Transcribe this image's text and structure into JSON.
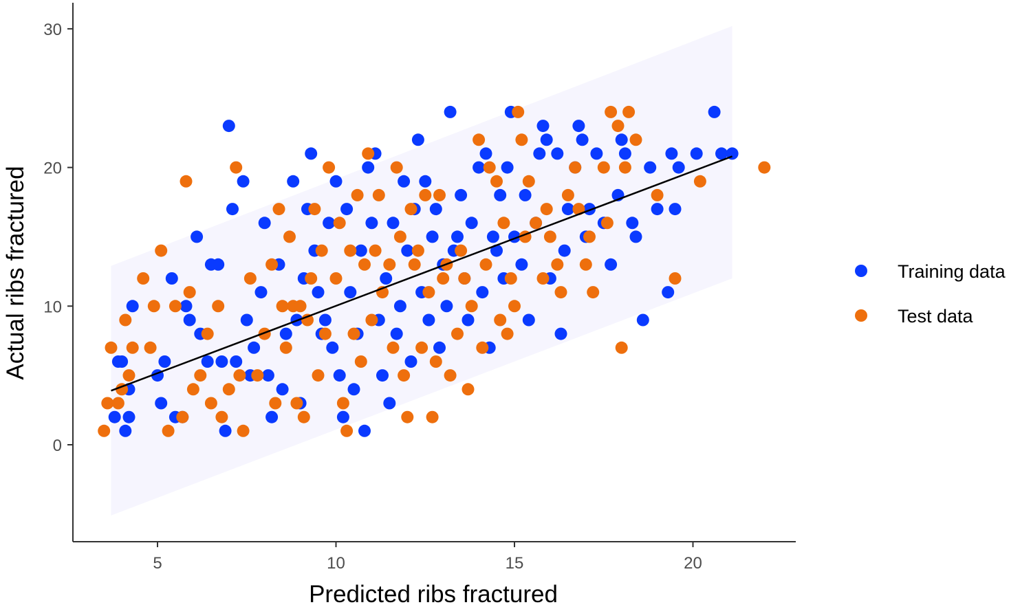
{
  "chart_data": {
    "type": "scatter",
    "title": "",
    "xlabel": "Predicted ribs fractured",
    "ylabel": "Actual ribs fractured",
    "xlim": [
      2.5,
      23.5
    ],
    "ylim": [
      -7,
      31
    ],
    "x_ticks": [
      "5",
      "10",
      "15",
      "20"
    ],
    "y_ticks": [
      "0",
      "10",
      "20",
      "30"
    ],
    "grid": false,
    "legend": {
      "position": "right"
    },
    "fit_line": {
      "x": [
        3.7,
        21.1
      ],
      "y": [
        3.9,
        20.8
      ],
      "color": "#000000"
    },
    "prediction_band": {
      "x": [
        3.7,
        21.1
      ],
      "lower": [
        -5.1,
        12.0
      ],
      "upper": [
        12.9,
        30.2
      ],
      "color": "#f6f5fe"
    },
    "series": [
      {
        "name": "Training data",
        "color": "#0a3aff",
        "points": [
          [
            3.8,
            2
          ],
          [
            4.0,
            6
          ],
          [
            3.9,
            6
          ],
          [
            4.1,
            1
          ],
          [
            4.2,
            2
          ],
          [
            4.3,
            10
          ],
          [
            4.2,
            4
          ],
          [
            5.1,
            3
          ],
          [
            5.0,
            5
          ],
          [
            5.2,
            6
          ],
          [
            5.4,
            12
          ],
          [
            5.5,
            2
          ],
          [
            5.7,
            2
          ],
          [
            5.8,
            10
          ],
          [
            5.9,
            9
          ],
          [
            6.1,
            15
          ],
          [
            6.2,
            8
          ],
          [
            6.4,
            6
          ],
          [
            6.5,
            13
          ],
          [
            6.7,
            13
          ],
          [
            6.8,
            6
          ],
          [
            6.9,
            1
          ],
          [
            7.0,
            23
          ],
          [
            7.1,
            17
          ],
          [
            7.2,
            6
          ],
          [
            7.4,
            19
          ],
          [
            7.5,
            9
          ],
          [
            7.6,
            5
          ],
          [
            7.7,
            7
          ],
          [
            7.9,
            11
          ],
          [
            8.0,
            16
          ],
          [
            8.1,
            5
          ],
          [
            8.2,
            2
          ],
          [
            8.4,
            13
          ],
          [
            8.5,
            4
          ],
          [
            8.6,
            8
          ],
          [
            8.8,
            19
          ],
          [
            8.9,
            9
          ],
          [
            9.0,
            3
          ],
          [
            9.1,
            12
          ],
          [
            9.2,
            17
          ],
          [
            9.3,
            21
          ],
          [
            9.4,
            14
          ],
          [
            9.5,
            11
          ],
          [
            9.6,
            8
          ],
          [
            9.7,
            9
          ],
          [
            9.8,
            16
          ],
          [
            9.9,
            7
          ],
          [
            10.0,
            19
          ],
          [
            10.1,
            5
          ],
          [
            10.2,
            2
          ],
          [
            10.3,
            17
          ],
          [
            10.4,
            11
          ],
          [
            10.5,
            4
          ],
          [
            10.6,
            8
          ],
          [
            10.7,
            14
          ],
          [
            10.8,
            1
          ],
          [
            10.9,
            20
          ],
          [
            11.0,
            16
          ],
          [
            11.1,
            21
          ],
          [
            11.2,
            9
          ],
          [
            11.3,
            5
          ],
          [
            11.4,
            12
          ],
          [
            11.5,
            3
          ],
          [
            11.6,
            16
          ],
          [
            11.7,
            8
          ],
          [
            11.8,
            10
          ],
          [
            11.9,
            19
          ],
          [
            12.0,
            14
          ],
          [
            12.1,
            6
          ],
          [
            12.2,
            17
          ],
          [
            12.3,
            22
          ],
          [
            12.4,
            11
          ],
          [
            12.5,
            19
          ],
          [
            12.6,
            9
          ],
          [
            12.7,
            15
          ],
          [
            12.8,
            17
          ],
          [
            12.9,
            7
          ],
          [
            13.0,
            13
          ],
          [
            13.1,
            10
          ],
          [
            13.2,
            24
          ],
          [
            13.3,
            14
          ],
          [
            13.4,
            15
          ],
          [
            13.5,
            18
          ],
          [
            13.6,
            12
          ],
          [
            13.7,
            9
          ],
          [
            13.8,
            16
          ],
          [
            14.0,
            20
          ],
          [
            14.1,
            11
          ],
          [
            14.2,
            21
          ],
          [
            14.3,
            7
          ],
          [
            14.4,
            15
          ],
          [
            14.5,
            14
          ],
          [
            14.6,
            18
          ],
          [
            14.7,
            12
          ],
          [
            14.8,
            20
          ],
          [
            14.9,
            24
          ],
          [
            15.0,
            15
          ],
          [
            15.2,
            13
          ],
          [
            15.3,
            18
          ],
          [
            15.4,
            9
          ],
          [
            15.6,
            16
          ],
          [
            15.7,
            21
          ],
          [
            15.8,
            23
          ],
          [
            15.9,
            22
          ],
          [
            16.0,
            12
          ],
          [
            16.2,
            21
          ],
          [
            16.3,
            8
          ],
          [
            16.4,
            14
          ],
          [
            16.5,
            17
          ],
          [
            16.7,
            20
          ],
          [
            16.8,
            23
          ],
          [
            16.9,
            22
          ],
          [
            17.0,
            15
          ],
          [
            17.1,
            17
          ],
          [
            17.3,
            21
          ],
          [
            17.5,
            16
          ],
          [
            17.7,
            13
          ],
          [
            17.9,
            18
          ],
          [
            18.0,
            22
          ],
          [
            18.1,
            21
          ],
          [
            18.3,
            16
          ],
          [
            18.4,
            15
          ],
          [
            18.6,
            9
          ],
          [
            18.8,
            20
          ],
          [
            19.0,
            17
          ],
          [
            19.3,
            11
          ],
          [
            19.4,
            21
          ],
          [
            19.5,
            17
          ],
          [
            19.6,
            20
          ],
          [
            20.1,
            21
          ],
          [
            20.6,
            24
          ],
          [
            20.8,
            21
          ],
          [
            21.1,
            21
          ]
        ]
      },
      {
        "name": "Test data",
        "color": "#ee6f0d",
        "points": [
          [
            3.5,
            1
          ],
          [
            3.6,
            3
          ],
          [
            3.7,
            7
          ],
          [
            3.9,
            3
          ],
          [
            4.0,
            4
          ],
          [
            4.1,
            9
          ],
          [
            4.2,
            5
          ],
          [
            4.3,
            7
          ],
          [
            4.6,
            12
          ],
          [
            4.8,
            7
          ],
          [
            4.9,
            10
          ],
          [
            5.1,
            14
          ],
          [
            5.3,
            1
          ],
          [
            5.5,
            10
          ],
          [
            5.7,
            2
          ],
          [
            5.8,
            19
          ],
          [
            5.9,
            11
          ],
          [
            6.0,
            4
          ],
          [
            6.2,
            5
          ],
          [
            6.4,
            8
          ],
          [
            6.5,
            3
          ],
          [
            6.7,
            10
          ],
          [
            6.8,
            2
          ],
          [
            7.0,
            4
          ],
          [
            7.2,
            20
          ],
          [
            7.3,
            5
          ],
          [
            7.4,
            1
          ],
          [
            7.6,
            12
          ],
          [
            7.8,
            5
          ],
          [
            8.0,
            8
          ],
          [
            8.2,
            13
          ],
          [
            8.3,
            3
          ],
          [
            8.4,
            17
          ],
          [
            8.5,
            10
          ],
          [
            8.6,
            7
          ],
          [
            8.7,
            15
          ],
          [
            8.8,
            10
          ],
          [
            8.9,
            3
          ],
          [
            9.0,
            10
          ],
          [
            9.1,
            2
          ],
          [
            9.2,
            9
          ],
          [
            9.3,
            12
          ],
          [
            9.4,
            17
          ],
          [
            9.5,
            5
          ],
          [
            9.6,
            14
          ],
          [
            9.7,
            8
          ],
          [
            9.8,
            20
          ],
          [
            10.0,
            12
          ],
          [
            10.1,
            16
          ],
          [
            10.2,
            3
          ],
          [
            10.3,
            1
          ],
          [
            10.4,
            14
          ],
          [
            10.5,
            8
          ],
          [
            10.6,
            18
          ],
          [
            10.7,
            6
          ],
          [
            10.8,
            13
          ],
          [
            10.9,
            21
          ],
          [
            11.0,
            9
          ],
          [
            11.1,
            14
          ],
          [
            11.2,
            18
          ],
          [
            11.3,
            11
          ],
          [
            11.5,
            13
          ],
          [
            11.6,
            7
          ],
          [
            11.7,
            20
          ],
          [
            11.8,
            15
          ],
          [
            11.9,
            5
          ],
          [
            12.0,
            2
          ],
          [
            12.1,
            17
          ],
          [
            12.2,
            13
          ],
          [
            12.3,
            14
          ],
          [
            12.4,
            7
          ],
          [
            12.5,
            18
          ],
          [
            12.6,
            11
          ],
          [
            12.7,
            2
          ],
          [
            12.8,
            6
          ],
          [
            12.9,
            18
          ],
          [
            13.0,
            12
          ],
          [
            13.1,
            13
          ],
          [
            13.2,
            5
          ],
          [
            13.4,
            8
          ],
          [
            13.5,
            14
          ],
          [
            13.6,
            12
          ],
          [
            13.7,
            4
          ],
          [
            13.8,
            10
          ],
          [
            14.0,
            22
          ],
          [
            14.1,
            7
          ],
          [
            14.2,
            13
          ],
          [
            14.3,
            20
          ],
          [
            14.5,
            19
          ],
          [
            14.6,
            9
          ],
          [
            14.7,
            16
          ],
          [
            14.8,
            8
          ],
          [
            14.9,
            12
          ],
          [
            15.0,
            10
          ],
          [
            15.1,
            24
          ],
          [
            15.2,
            22
          ],
          [
            15.3,
            15
          ],
          [
            15.4,
            19
          ],
          [
            15.6,
            16
          ],
          [
            15.8,
            12
          ],
          [
            15.9,
            17
          ],
          [
            16.0,
            15
          ],
          [
            16.2,
            13
          ],
          [
            16.3,
            11
          ],
          [
            16.5,
            18
          ],
          [
            16.7,
            20
          ],
          [
            16.8,
            17
          ],
          [
            17.0,
            13
          ],
          [
            17.1,
            15
          ],
          [
            17.2,
            11
          ],
          [
            17.5,
            20
          ],
          [
            17.6,
            16
          ],
          [
            17.7,
            24
          ],
          [
            17.9,
            23
          ],
          [
            18.0,
            7
          ],
          [
            18.1,
            20
          ],
          [
            18.2,
            24
          ],
          [
            18.4,
            22
          ],
          [
            19.0,
            18
          ],
          [
            19.5,
            12
          ],
          [
            20.2,
            19
          ],
          [
            22.0,
            20
          ]
        ]
      }
    ]
  }
}
